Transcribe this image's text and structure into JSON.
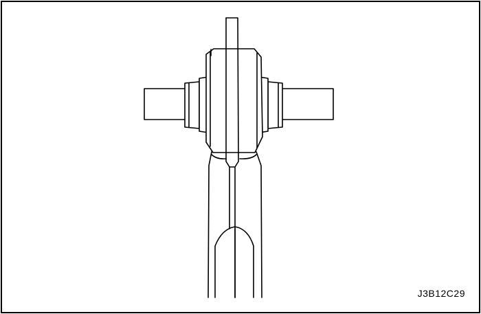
{
  "figure": {
    "code": "J3B12C29"
  },
  "colors": {
    "line": "#000000",
    "background": "#ffffff"
  }
}
